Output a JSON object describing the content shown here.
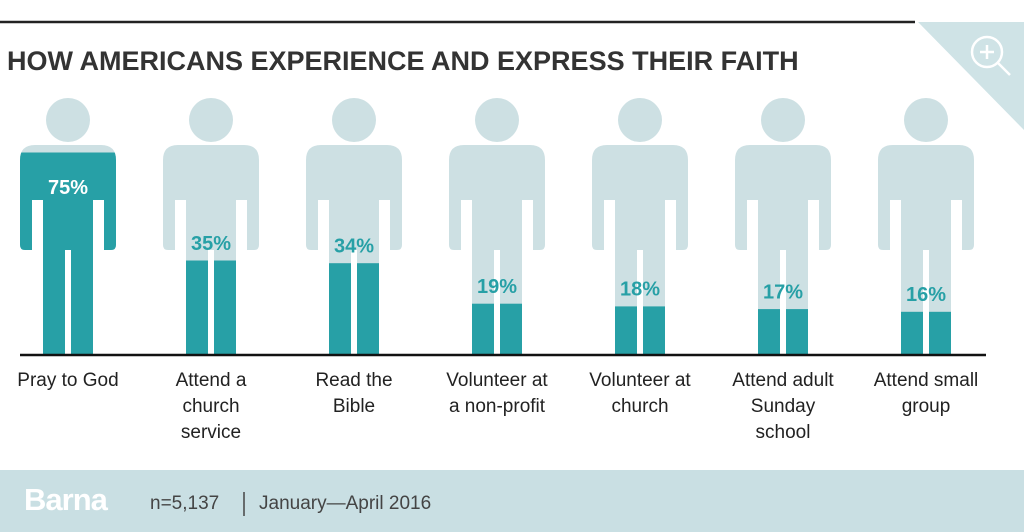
{
  "chart_data": {
    "type": "bar",
    "title": "HOW AMERICANS EXPERIENCE AND EXPRESS THEIR FAITH",
    "categories": [
      "Pray to God",
      "Attend a church service",
      "Read the Bible",
      "Volunteer at a non-profit",
      "Volunteer at church",
      "Attend adult Sunday school",
      "Attend small group"
    ],
    "values": [
      75,
      35,
      34,
      19,
      18,
      17,
      16
    ],
    "value_labels": [
      "75%",
      "35%",
      "34%",
      "19%",
      "18%",
      "17%",
      "16%"
    ],
    "color": "#27a0a6",
    "ylim": [
      0,
      100
    ]
  },
  "footer": {
    "brand": "Barna",
    "sample": "n=5,137",
    "date": "January—April 2016"
  }
}
